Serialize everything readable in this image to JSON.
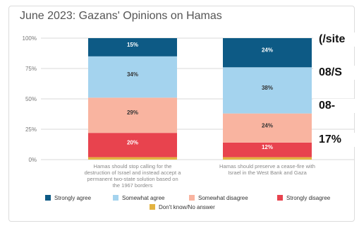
{
  "chart_data": {
    "type": "bar",
    "stacked": true,
    "title": "June 2023: Gazans' Opinions on Hamas",
    "categories": [
      "Hamas should stop calling for the destruction of Israel and instead accept a permanent two-state solution based on the 1967 borders",
      "Hamas should preserve a cease-fire with Israel in the West Bank and Gaza"
    ],
    "category_lines": [
      [
        "Hamas should stop calling for the",
        "destruction of Israel and instead accept a",
        "permanent two-state solution based on",
        "the 1967 borders"
      ],
      [
        "Hamas should preserve a cease-fire with",
        "Israel in the West Bank and Gaza"
      ]
    ],
    "series": [
      {
        "name": "Don't know/No answer",
        "color": "#e3b341",
        "values": [
          2,
          2
        ],
        "labels": [
          "",
          ""
        ]
      },
      {
        "name": "Strongly disagree",
        "color": "#e8434e",
        "values": [
          20,
          12
        ],
        "labels": [
          "20%",
          "12%"
        ]
      },
      {
        "name": "Somewhat disagree",
        "color": "#f9b4a0",
        "values": [
          29,
          24
        ],
        "labels": [
          "29%",
          "24%"
        ]
      },
      {
        "name": "Somewhat agree",
        "color": "#a4d3ee",
        "values": [
          34,
          38
        ],
        "labels": [
          "34%",
          "38%"
        ]
      },
      {
        "name": "Strongly agree",
        "color": "#0d5a85",
        "values": [
          15,
          24
        ],
        "labels": [
          "15%",
          "24%"
        ]
      }
    ],
    "legend_order": [
      "Strongly agree",
      "Somewhat agree",
      "Somewhat disagree",
      "Strongly disagree",
      "Don't know/No answer"
    ],
    "ylim": [
      0,
      100
    ],
    "yticks": [
      0,
      25,
      50,
      75,
      100
    ],
    "ytick_labels": [
      "0%",
      "25%",
      "50%",
      "75%",
      "100%"
    ],
    "grid": true,
    "legend_position": "bottom"
  },
  "overlay_lines": [
    "(/site",
    "08/S",
    "08-",
    "17%"
  ]
}
